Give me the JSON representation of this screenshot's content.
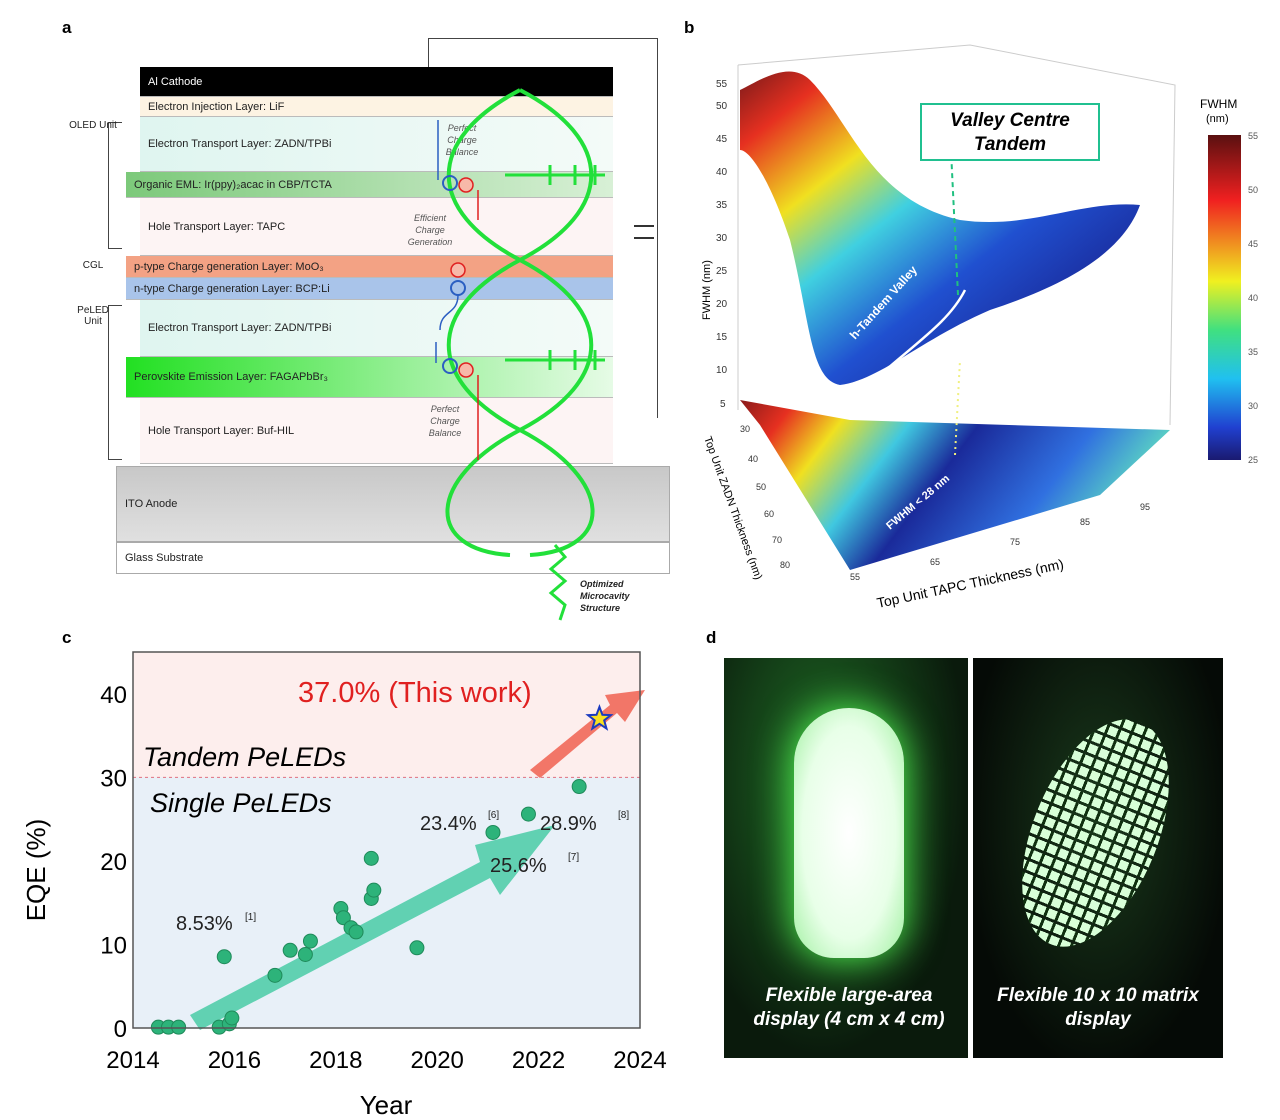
{
  "panels": {
    "a": "a",
    "b": "b",
    "c": "c",
    "d": "d"
  },
  "panel_a": {
    "layers": [
      "Al Cathode",
      "Electron Injection Layer: LiF",
      "Electron Transport Layer: ZADN/TPBi",
      "Organic EML: Ir(ppy)₂acac in CBP/TCTA",
      "Hole Transport Layer: TAPC",
      "p-type Charge generation Layer: MoO₃",
      "n-type Charge generation Layer: BCP:Li",
      "Electron Transport Layer: ZADN/TPBi",
      "Perovskite Emission Layer: FAGAPbBr₃",
      "Hole Transport Layer: Buf-HIL",
      "ITO Anode",
      "Glass Substrate"
    ],
    "units": [
      "OLED Unit",
      "CGL",
      "PeLED Unit"
    ],
    "notes": [
      "Perfect Charge Balance",
      "Efficient Charge Generation",
      "Perfect Charge Balance",
      "Optimized Microcavity Structure"
    ]
  },
  "panel_b": {
    "callout": "Valley Centre Tandem",
    "valley_label": "h-Tandem Valley",
    "contour_label": "FWHM < 28 nm",
    "z_axis_label": "FWHM (nm)",
    "z_ticks": [
      "5",
      "10",
      "15",
      "20",
      "25",
      "30",
      "35",
      "40",
      "45",
      "50",
      "55"
    ],
    "x_axis_label": "Top Unit TAPC Thickness (nm)",
    "x_ticks": [
      "55",
      "65",
      "75",
      "85",
      "95"
    ],
    "y_axis_label": "Top Unit ZADN Thickness (nm)",
    "y_ticks": [
      "30",
      "40",
      "50",
      "60",
      "70",
      "80"
    ],
    "colorbar": {
      "title": "FWHM",
      "unit": "(nm)",
      "ticks": [
        "55",
        "50",
        "45",
        "40",
        "35",
        "30",
        "25"
      ],
      "range": [
        25,
        55
      ]
    }
  },
  "chart_data": {
    "type": "scatter",
    "xlabel": "Year",
    "ylabel": "EQE (%)",
    "xlim": [
      2014,
      2024
    ],
    "ylim": [
      0,
      45
    ],
    "x_ticks": [
      "2014",
      "2016",
      "2018",
      "2020",
      "2022",
      "2024"
    ],
    "y_ticks": [
      "0",
      "10",
      "20",
      "30",
      "40"
    ],
    "threshold": 30,
    "region_labels": [
      "Tandem PeLEDs",
      "Single PeLEDs"
    ],
    "points": [
      [
        2014.5,
        0.1
      ],
      [
        2014.7,
        0.1
      ],
      [
        2014.9,
        0.1
      ],
      [
        2015.7,
        0.1
      ],
      [
        2015.8,
        8.53
      ],
      [
        2015.9,
        0.5
      ],
      [
        2015.95,
        1.2
      ],
      [
        2016.8,
        6.3
      ],
      [
        2017.1,
        9.3
      ],
      [
        2017.4,
        8.8
      ],
      [
        2017.5,
        10.4
      ],
      [
        2018.1,
        14.3
      ],
      [
        2018.15,
        13.2
      ],
      [
        2018.3,
        12.0
      ],
      [
        2018.4,
        11.5
      ],
      [
        2018.7,
        15.5
      ],
      [
        2018.75,
        16.5
      ],
      [
        2018.7,
        20.3
      ],
      [
        2019.6,
        9.6
      ],
      [
        2021.1,
        23.4
      ],
      [
        2021.8,
        25.6
      ],
      [
        2022.8,
        28.9
      ]
    ],
    "this_work": [
      2023.2,
      37.0
    ],
    "annotations": [
      {
        "text": "8.53%",
        "ref": "[1]"
      },
      {
        "text": "23.4%",
        "ref": "[6]"
      },
      {
        "text": "25.6%",
        "ref": "[7]"
      },
      {
        "text": "28.9%",
        "ref": "[8]"
      },
      {
        "text": "37.0% (This work)",
        "ref": ""
      }
    ]
  },
  "panel_d": {
    "captions": [
      "Flexible large-area display (4 cm x 4 cm)",
      "Flexible 10 x 10 matrix display"
    ]
  },
  "colors": {
    "green": "#22e03a",
    "point": "#2db37a",
    "red": "#e02020"
  }
}
